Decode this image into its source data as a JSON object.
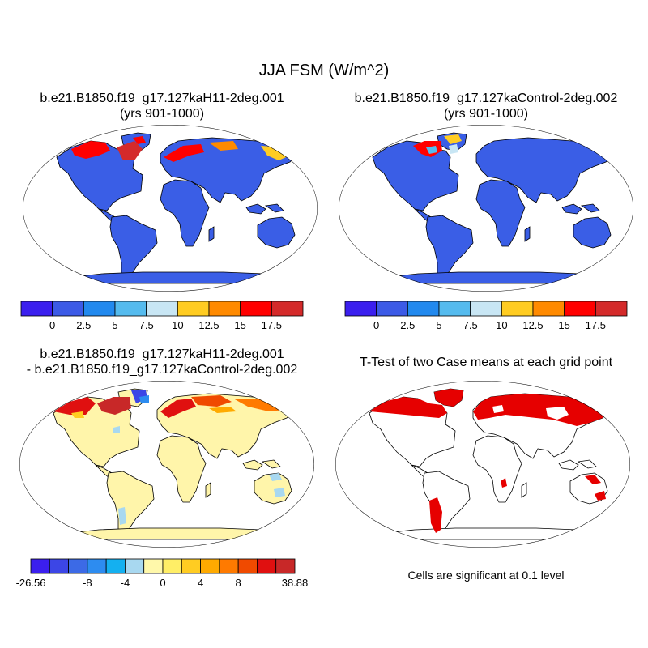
{
  "figure": {
    "title": "JJA FSM (W/m^2)",
    "panels": {
      "top_left": {
        "title_line1": "b.e21.B1850.f19_g17.127kaH11-2deg.001",
        "title_line2": "(yrs 901-1000)"
      },
      "top_right": {
        "title_line1": "b.e21.B1850.f19_g17.127kaControl-2deg.002",
        "title_line2": "(yrs 901-1000)"
      },
      "bottom_left": {
        "title_line1": "b.e21.B1850.f19_g17.127kaH11-2deg.001",
        "title_line2": "- b.e21.B1850.f19_g17.127kaControl-2deg.002"
      },
      "bottom_right": {
        "title_line1": "T-Test of two Case means at each grid point",
        "note": "Cells are significant at 0.1 level"
      }
    },
    "colors": {
      "land_low": "#3a5ee6",
      "ocean": "#ffffff",
      "diff_near_zero": "#fff5aa",
      "significant": "#e60000"
    }
  },
  "colorbars": {
    "case": {
      "colors": [
        "#3b1fee",
        "#3c5ae6",
        "#2289ee",
        "#55bbee",
        "#c8e6f4",
        "#ffcc22",
        "#ff8a00",
        "#ff0000",
        "#d42a2a"
      ],
      "labels": [
        "0",
        "2.5",
        "5",
        "7.5",
        "10",
        "12.5",
        "15",
        "17.5"
      ]
    },
    "diff": {
      "colors": [
        "#3b1fee",
        "#3c46e6",
        "#3c6ae6",
        "#2d8cf0",
        "#14b0f0",
        "#a8d8f0",
        "#fff8aa",
        "#ffee66",
        "#ffcc22",
        "#ffaa00",
        "#ff7a00",
        "#f04a00",
        "#e01010",
        "#c82828"
      ],
      "labels": [
        {
          "text": "-26.56",
          "at": 0
        },
        {
          "text": "-8",
          "at": 3
        },
        {
          "text": "-4",
          "at": 5
        },
        {
          "text": "0",
          "at": 7
        },
        {
          "text": "4",
          "at": 9
        },
        {
          "text": "8",
          "at": 11
        },
        {
          "text": "38.88",
          "at": 14
        }
      ]
    }
  }
}
